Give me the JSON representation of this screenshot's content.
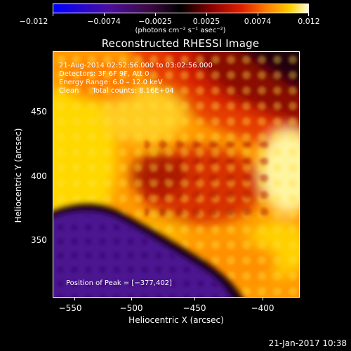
{
  "colorbar": {
    "tick_labels": [
      "−0.012",
      "−0.0074",
      "−0.0025",
      "0.0025",
      "0.0074",
      "0.012"
    ],
    "units": "(photons cm⁻² s⁻¹ asec⁻²)"
  },
  "title": "Reconstructed RHESSI Image",
  "info": {
    "time_range": "21‑Aug‑2014 02:52:56.000 to 03:02:56.000",
    "detectors": "Detectors: 3F 6F 9F, Att 0",
    "energy": "Energy Range: 6.0 – 12.0 keV",
    "clean": "Clean      Total counts: 8.16E+04",
    "peak": "Position of Peak = [−377,402]"
  },
  "axes": {
    "x_title": "Heliocentric X (arcsec)",
    "y_title": "Heliocentric Y (arcsec)",
    "x_ticks": [
      "−550",
      "−500",
      "−450",
      "−400"
    ],
    "y_ticks": [
      "450",
      "400",
      "350"
    ]
  },
  "footer_date": "21‑Jan‑2017 10:38",
  "colors": {
    "colormap": [
      "#0000ff",
      "#5a0a9a",
      "#000000",
      "#8b0000",
      "#e02000",
      "#ff8000",
      "#ffd000",
      "#ffffc0"
    ]
  }
}
